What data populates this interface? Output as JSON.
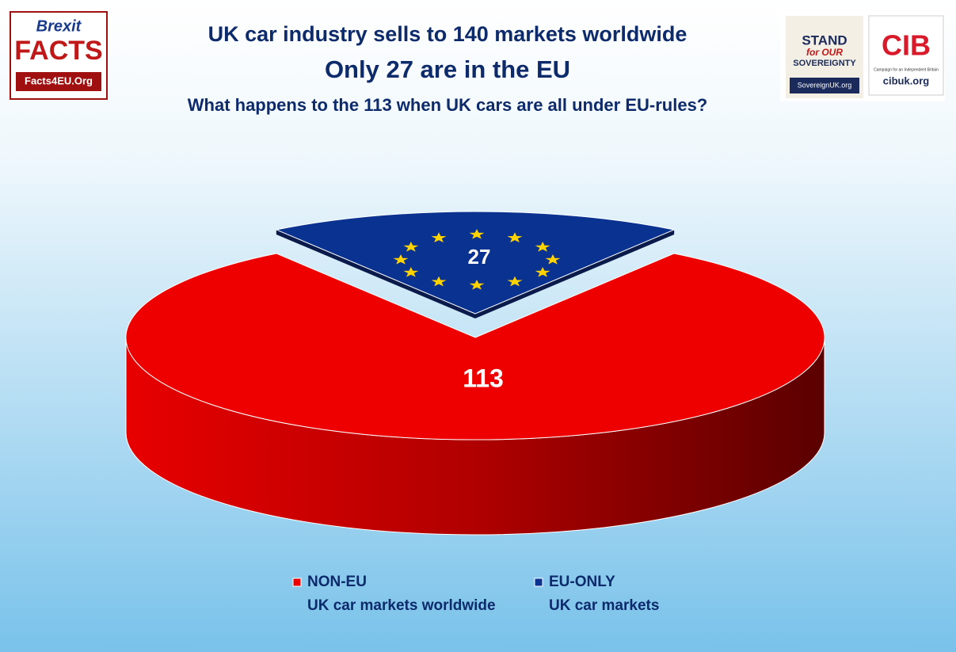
{
  "logos": {
    "brexit": {
      "line1": "Brexit",
      "line2": "FACTS",
      "url": "Facts4EU.Org"
    },
    "sovereign": {
      "line1": "STAND",
      "line2": "for OUR",
      "line3": "SOVEREIGNTY",
      "url": "SovereignUK.org"
    },
    "cib": {
      "mark": "CIB",
      "caption": "Campaign for an Independent Britain",
      "url": "cibuk.org"
    }
  },
  "chart_data": {
    "type": "pie",
    "title": [
      "UK car industry sells to 140 markets worldwide",
      "Only 27 are in the EU"
    ],
    "subtitle": "What happens to the 113 when UK cars are all under EU-rules?",
    "categories": [
      "NON-EU",
      "EU-ONLY"
    ],
    "descriptions": [
      "UK car markets worldwide",
      "UK car markets"
    ],
    "values": [
      113,
      27
    ],
    "colors": [
      "#ee0000",
      "#0a3290"
    ],
    "legend": "bottom"
  }
}
